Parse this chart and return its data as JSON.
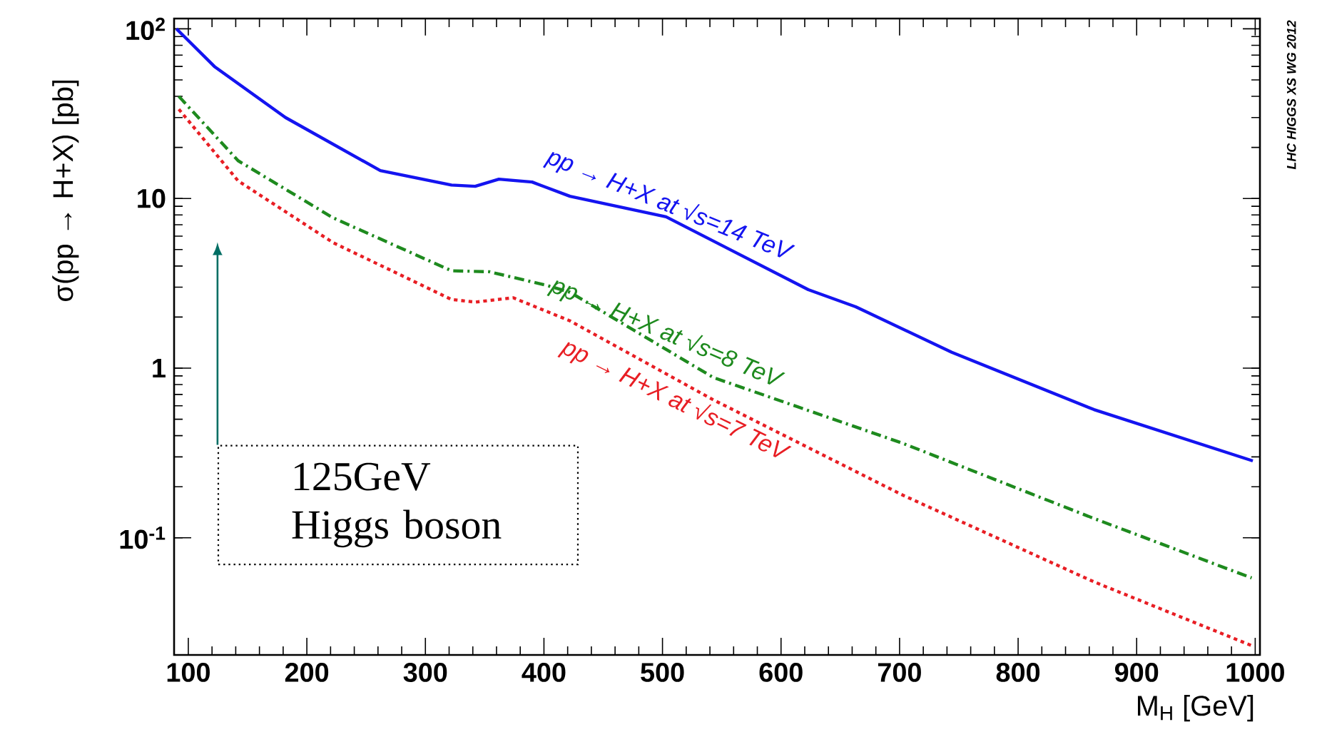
{
  "chart_data": {
    "type": "line",
    "xlabel": "M$_{H}$ [GeV]",
    "ylabel": "σ(pp → H+X)  [pb]",
    "log": "y",
    "xlim": [
      88,
      1004
    ],
    "ylim": [
      0.0204,
      115
    ],
    "xticks": [
      100,
      200,
      300,
      400,
      500,
      600,
      700,
      800,
      900,
      1000
    ],
    "yticks": [
      {
        "value": 0.1,
        "label": "10$^{-1}$"
      },
      1,
      10,
      {
        "value": 100,
        "label": "10$^{2}$"
      }
    ],
    "series": [
      {
        "name": "pp → H+X at √s=14 TeV",
        "color": "#1414f0",
        "line_style": "solid",
        "x": [
          90,
          122,
          182,
          262,
          322,
          342,
          362,
          390,
          422,
          503,
          623,
          663,
          744,
          864,
          998
        ],
        "values": [
          100,
          60,
          30,
          14.6,
          12.0,
          11.8,
          13.0,
          12.5,
          10.3,
          7.8,
          2.9,
          2.3,
          1.24,
          0.57,
          0.284
        ]
      },
      {
        "name": "pp → H+X at √s=8 TeV",
        "color": "#1e8a1e",
        "line_style": "dashdot",
        "x": [
          92,
          142,
          222,
          322,
          354,
          402,
          422,
          543,
          703,
          864,
          997
        ],
        "values": [
          40,
          16.7,
          7.7,
          3.75,
          3.7,
          3.08,
          2.8,
          0.88,
          0.36,
          0.13,
          0.058
        ]
      },
      {
        "name": "pp → H+X at √s=7 TeV",
        "color": "#e81e24",
        "line_style": "dotted",
        "x": [
          92,
          142,
          222,
          322,
          342,
          374,
          422,
          543,
          703,
          864,
          998
        ],
        "values": [
          33.6,
          12.7,
          5.5,
          2.54,
          2.45,
          2.6,
          1.9,
          0.65,
          0.178,
          0.055,
          0.023
        ]
      }
    ],
    "annotations": [
      "125GeV Higgs boson",
      "LHC HIGGS XS WG 2012"
    ]
  }
}
